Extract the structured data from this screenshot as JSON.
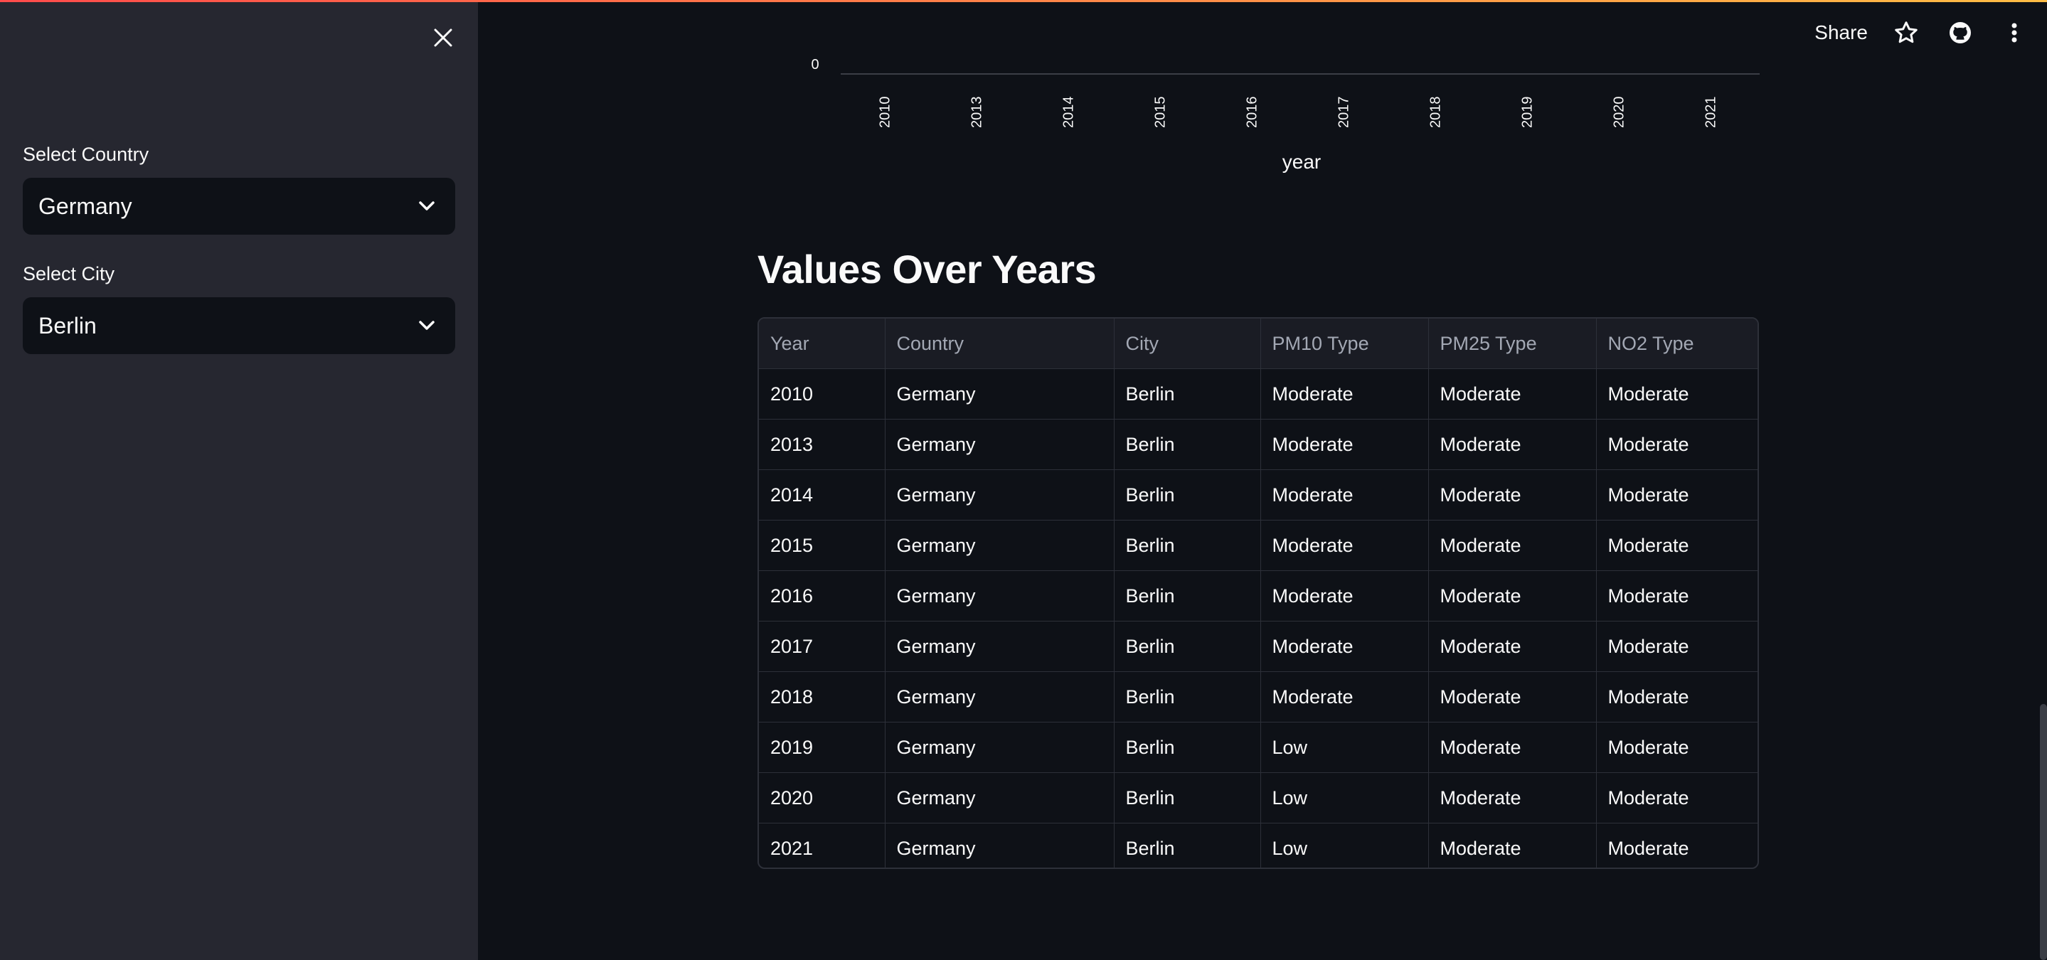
{
  "sidebar": {
    "country_label": "Select Country",
    "country_value": "Germany",
    "city_label": "Select City",
    "city_value": "Berlin"
  },
  "header": {
    "share_label": "Share"
  },
  "chart_data": {
    "type": "bar",
    "xlabel": "year",
    "categories": [
      "2010",
      "2013",
      "2014",
      "2015",
      "2016",
      "2017",
      "2018",
      "2019",
      "2020",
      "2021"
    ],
    "visible_y_tick": "0"
  },
  "section": {
    "title": "Values Over Years"
  },
  "table": {
    "columns": [
      "Year",
      "Country",
      "City",
      "PM10 Type",
      "PM25 Type",
      "NO2 Type"
    ],
    "rows": [
      [
        "2010",
        "Germany",
        "Berlin",
        "Moderate",
        "Moderate",
        "Moderate"
      ],
      [
        "2013",
        "Germany",
        "Berlin",
        "Moderate",
        "Moderate",
        "Moderate"
      ],
      [
        "2014",
        "Germany",
        "Berlin",
        "Moderate",
        "Moderate",
        "Moderate"
      ],
      [
        "2015",
        "Germany",
        "Berlin",
        "Moderate",
        "Moderate",
        "Moderate"
      ],
      [
        "2016",
        "Germany",
        "Berlin",
        "Moderate",
        "Moderate",
        "Moderate"
      ],
      [
        "2017",
        "Germany",
        "Berlin",
        "Moderate",
        "Moderate",
        "Moderate"
      ],
      [
        "2018",
        "Germany",
        "Berlin",
        "Moderate",
        "Moderate",
        "Moderate"
      ],
      [
        "2019",
        "Germany",
        "Berlin",
        "Low",
        "Moderate",
        "Moderate"
      ],
      [
        "2020",
        "Germany",
        "Berlin",
        "Low",
        "Moderate",
        "Moderate"
      ],
      [
        "2021",
        "Germany",
        "Berlin",
        "Low",
        "Moderate",
        "Moderate"
      ]
    ]
  },
  "colors": {
    "background": "#0e1117",
    "sidebar": "#262730",
    "text": "#fafafa",
    "muted": "#a3a8b4",
    "border": "#2d3039",
    "accent_start": "#ff4b4b",
    "accent_end": "#ffbd45"
  }
}
